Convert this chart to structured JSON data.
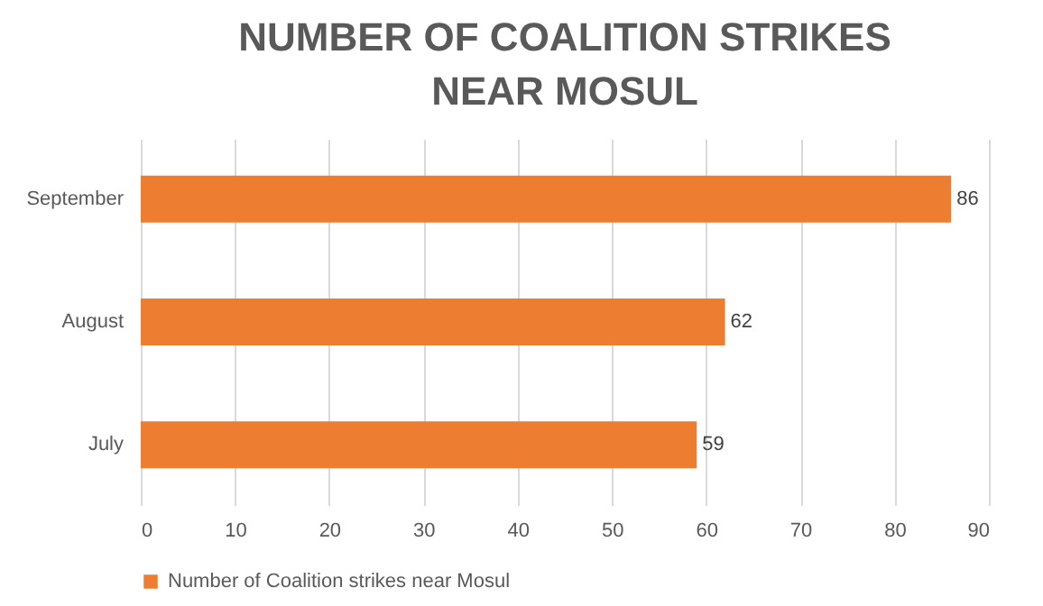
{
  "chart_data": {
    "type": "bar",
    "orientation": "horizontal",
    "title": "NUMBER OF COALITION STRIKES NEAR MOSUL",
    "categories": [
      "September",
      "August",
      "July"
    ],
    "series": [
      {
        "name": "Number of Coalition strikes near Mosul",
        "color": "#ed7d31",
        "values": [
          86,
          62,
          59
        ]
      }
    ],
    "xlim": [
      0,
      90
    ],
    "xticks": [
      0,
      10,
      20,
      30,
      40,
      50,
      60,
      70,
      80,
      90
    ],
    "grid": "x",
    "legend": "bottom",
    "data_labels": true
  }
}
